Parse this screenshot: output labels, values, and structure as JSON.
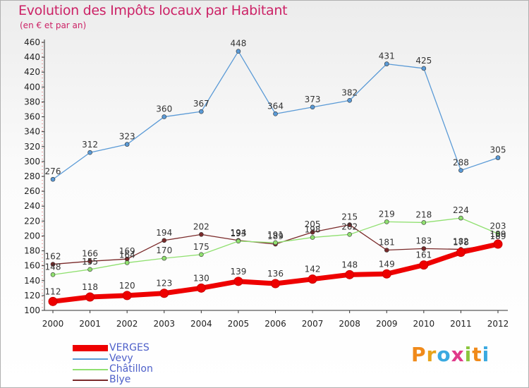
{
  "title": "Evolution des Impôts locaux par Habitant",
  "subtitle": "(en € et par an)",
  "logo": {
    "text": "Proxiti",
    "colors": [
      "#f08a1a",
      "#e8a31a",
      "#3aa9e0",
      "#e03a8a",
      "#8cc63f",
      "#f08a1a",
      "#3aa9e0"
    ]
  },
  "chart_data": {
    "type": "line",
    "title": "Evolution des Impôts locaux par Habitant",
    "subtitle": "(en € et par an)",
    "xlabel": "",
    "ylabel": "",
    "ylim": [
      100,
      460
    ],
    "yticks": [
      100,
      120,
      140,
      160,
      180,
      200,
      220,
      240,
      260,
      280,
      300,
      320,
      340,
      360,
      380,
      400,
      420,
      440,
      460
    ],
    "grid": false,
    "legend_position": "bottom-left",
    "categories": [
      "2000",
      "2001",
      "2002",
      "2003",
      "2004",
      "2005",
      "2006",
      "2007",
      "2008",
      "2009",
      "2010",
      "2011",
      "2012"
    ],
    "series": [
      {
        "name": "VERGES",
        "color": "#ee0000",
        "values": [
          112,
          118,
          120,
          123,
          130,
          139,
          136,
          142,
          148,
          149,
          161,
          178,
          189
        ]
      },
      {
        "name": "Vevy",
        "color": "#5a9ad6",
        "values": [
          276,
          312,
          323,
          360,
          367,
          448,
          364,
          373,
          382,
          431,
          425,
          288,
          305
        ]
      },
      {
        "name": "Châtillon",
        "color": "#90e070",
        "values": [
          148,
          155,
          164,
          170,
          175,
          193,
          191,
          198,
          202,
          219,
          218,
          224,
          203
        ]
      },
      {
        "name": "Blye",
        "color": "#7a2a2a",
        "values": [
          162,
          166,
          169,
          194,
          202,
          194,
          189,
          205,
          215,
          181,
          183,
          182,
          189
        ]
      }
    ],
    "data_labels": [
      {
        "series": "VERGES",
        "labels": [
          "112",
          "118",
          "120",
          "123",
          "130",
          "139",
          "136",
          "142",
          "148",
          "149",
          "161",
          "178",
          "189"
        ]
      },
      {
        "series": "Vevy",
        "labels": [
          "276",
          "312",
          "323",
          "360",
          "367",
          "448",
          "364",
          "373",
          "382",
          "431",
          "425",
          "288",
          "305"
        ]
      },
      {
        "series": "Châtillon",
        "labels": [
          "148",
          "155",
          "164",
          "170",
          "175",
          "193",
          "191",
          "198",
          "202",
          "219",
          "218",
          "224",
          "203"
        ]
      },
      {
        "series": "Blye",
        "labels": [
          "162",
          "166",
          "169",
          "194",
          "202",
          "194",
          "189",
          "205",
          "215",
          "181",
          "183",
          "182",
          "189"
        ]
      }
    ]
  }
}
